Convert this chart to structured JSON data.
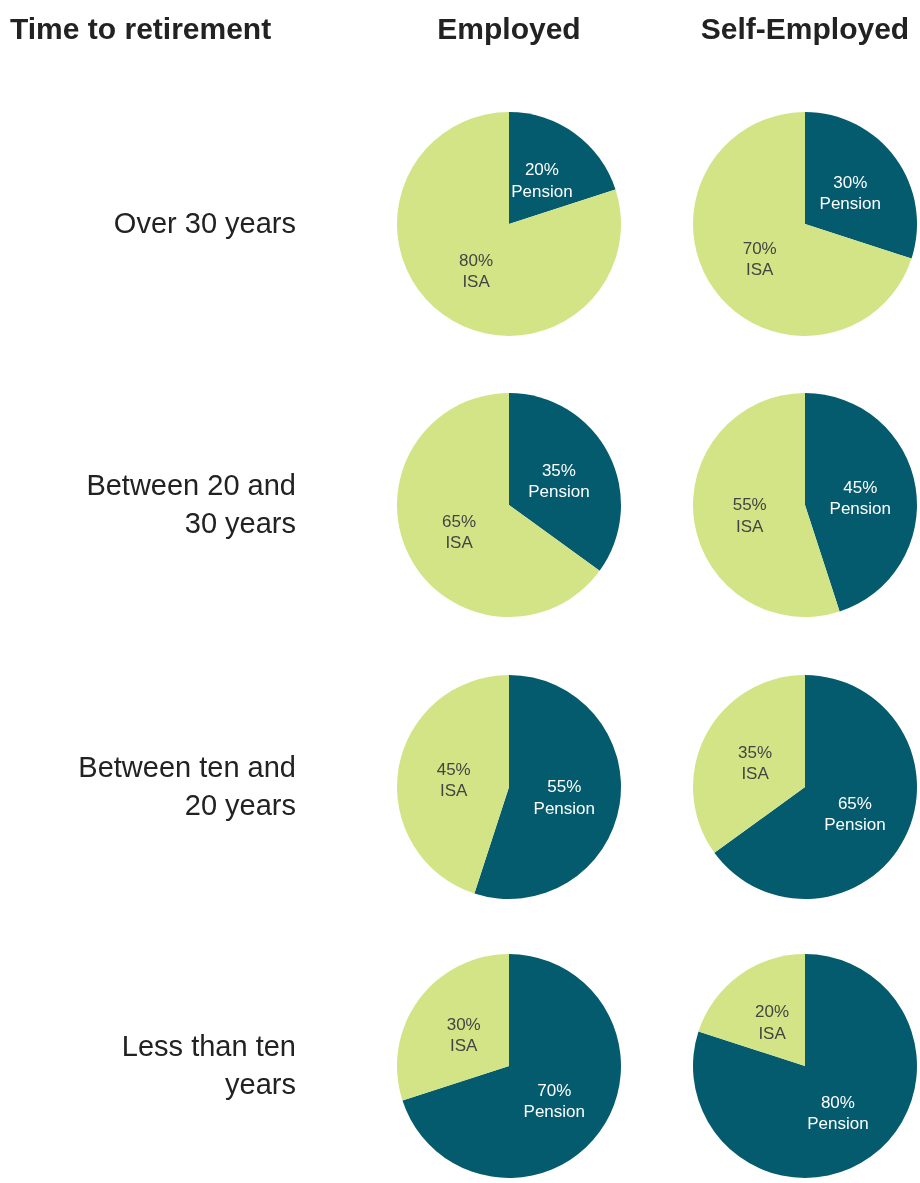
{
  "chart_data": [
    {
      "type": "other",
      "title": "Time to retirement"
    },
    {
      "type": "pie",
      "title": "Employed",
      "ylabel": "Over 30 years",
      "categories": [
        "Pension",
        "ISA"
      ],
      "values": [
        20,
        80
      ],
      "value_labels": [
        "20%",
        "80%"
      ],
      "colors": [
        "#055b6e",
        "#d3e487"
      ]
    },
    {
      "type": "pie",
      "title": "Self-Employed",
      "categories": [
        "Pension",
        "ISA"
      ],
      "values": [
        30,
        70
      ],
      "value_labels": [
        "30%",
        "70%"
      ],
      "colors": [
        "#055b6e",
        "#d3e487"
      ]
    },
    {
      "type": "pie",
      "ylabel": "Between 20 and 30 years",
      "categories": [
        "Pension",
        "ISA"
      ],
      "values": [
        35,
        65
      ],
      "value_labels": [
        "35%",
        "65%"
      ],
      "colors": [
        "#055b6e",
        "#d3e487"
      ]
    },
    {
      "type": "pie",
      "categories": [
        "Pension",
        "ISA"
      ],
      "values": [
        45,
        55
      ],
      "value_labels": [
        "45%",
        "55%"
      ],
      "colors": [
        "#055b6e",
        "#d3e487"
      ]
    },
    {
      "type": "pie",
      "ylabel": "Between ten and 20 years",
      "categories": [
        "Pension",
        "ISA"
      ],
      "values": [
        55,
        45
      ],
      "value_labels": [
        "55%",
        "45%"
      ],
      "colors": [
        "#055b6e",
        "#d3e487"
      ]
    },
    {
      "type": "pie",
      "categories": [
        "Pension",
        "ISA"
      ],
      "values": [
        65,
        35
      ],
      "value_labels": [
        "65%",
        "35%"
      ],
      "colors": [
        "#055b6e",
        "#d3e487"
      ]
    },
    {
      "type": "pie",
      "ylabel": "Less than ten years",
      "categories": [
        "Pension",
        "ISA"
      ],
      "values": [
        70,
        30
      ],
      "value_labels": [
        "70%",
        "30%"
      ],
      "colors": [
        "#055b6e",
        "#d3e487"
      ]
    },
    {
      "type": "pie",
      "categories": [
        "Pension",
        "ISA"
      ],
      "values": [
        80,
        20
      ],
      "value_labels": [
        "80%",
        "20%"
      ],
      "colors": [
        "#055b6e",
        "#d3e487"
      ]
    }
  ]
}
